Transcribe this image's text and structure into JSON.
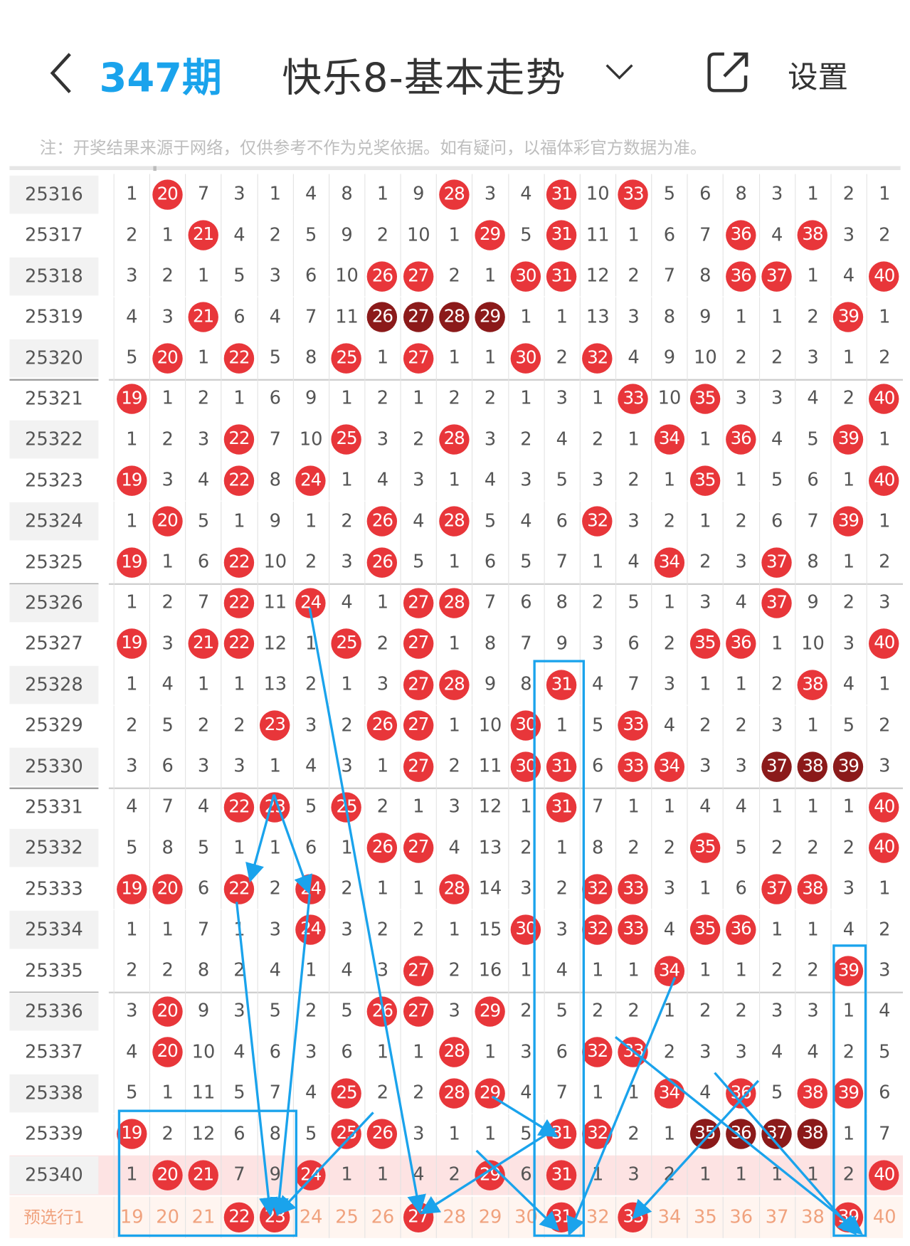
{
  "header": {
    "title": "快乐8-基本走势",
    "settings_label": "设置",
    "icons": {
      "back": "chevron-left-icon",
      "dropdown": "chevron-down-icon",
      "share": "share-icon"
    }
  },
  "note": "注：开奖结果来源于网络，仅供参考不作为兑奖依据。如有疑问，以福体彩官方数据为准。",
  "colors": {
    "hit_ball": "#e8363a",
    "consecutive_ball": "#8b1a1a",
    "highlight_row": "#fde3e3",
    "preselect_text": "#f0a27e",
    "annotation": "#1aa3ec"
  },
  "columns": [
    19,
    20,
    21,
    22,
    23,
    24,
    25,
    26,
    27,
    28,
    29,
    30,
    31,
    32,
    33,
    34,
    35,
    36,
    37,
    38,
    39,
    40
  ],
  "rows": [
    {
      "issue": "25316",
      "values": [
        1,
        20,
        7,
        3,
        1,
        4,
        8,
        1,
        9,
        28,
        3,
        4,
        31,
        10,
        33,
        5,
        6,
        8,
        3,
        1,
        2,
        1
      ],
      "dark": []
    },
    {
      "issue": "25317",
      "values": [
        2,
        1,
        21,
        4,
        2,
        5,
        9,
        2,
        10,
        1,
        29,
        5,
        31,
        11,
        1,
        6,
        7,
        36,
        4,
        38,
        3,
        2
      ],
      "dark": []
    },
    {
      "issue": "25318",
      "values": [
        3,
        2,
        1,
        5,
        3,
        6,
        10,
        26,
        27,
        2,
        1,
        30,
        31,
        12,
        2,
        7,
        8,
        36,
        37,
        1,
        4,
        40
      ],
      "dark": []
    },
    {
      "issue": "25319",
      "values": [
        4,
        3,
        21,
        6,
        4,
        7,
        11,
        26,
        27,
        28,
        29,
        1,
        1,
        13,
        3,
        8,
        9,
        1,
        1,
        2,
        39,
        1
      ],
      "dark": [
        26,
        27,
        28,
        29
      ]
    },
    {
      "issue": "25320",
      "values": [
        5,
        20,
        1,
        22,
        5,
        8,
        25,
        1,
        27,
        1,
        1,
        30,
        2,
        32,
        4,
        9,
        10,
        2,
        2,
        3,
        1,
        2
      ],
      "dark": []
    },
    {
      "issue": "25321",
      "values": [
        19,
        1,
        2,
        1,
        6,
        9,
        1,
        2,
        1,
        2,
        2,
        1,
        3,
        1,
        33,
        10,
        35,
        3,
        3,
        4,
        2,
        40
      ],
      "dark": []
    },
    {
      "issue": "25322",
      "values": [
        1,
        2,
        3,
        22,
        7,
        10,
        25,
        3,
        2,
        28,
        3,
        2,
        4,
        2,
        1,
        34,
        1,
        36,
        4,
        5,
        39,
        1
      ],
      "dark": []
    },
    {
      "issue": "25323",
      "values": [
        19,
        3,
        4,
        22,
        8,
        24,
        1,
        4,
        3,
        1,
        4,
        3,
        5,
        3,
        2,
        1,
        35,
        1,
        5,
        6,
        1,
        40
      ],
      "dark": []
    },
    {
      "issue": "25324",
      "values": [
        1,
        20,
        5,
        1,
        9,
        1,
        2,
        26,
        4,
        28,
        5,
        4,
        6,
        32,
        3,
        2,
        1,
        2,
        6,
        7,
        39,
        1
      ],
      "dark": []
    },
    {
      "issue": "25325",
      "values": [
        19,
        1,
        6,
        22,
        10,
        2,
        3,
        26,
        5,
        1,
        6,
        5,
        7,
        1,
        4,
        34,
        2,
        3,
        37,
        8,
        1,
        2
      ],
      "dark": []
    },
    {
      "issue": "25326",
      "values": [
        1,
        2,
        7,
        22,
        11,
        24,
        4,
        1,
        27,
        28,
        7,
        6,
        8,
        2,
        5,
        1,
        3,
        4,
        37,
        9,
        2,
        3
      ],
      "dark": []
    },
    {
      "issue": "25327",
      "values": [
        19,
        3,
        21,
        22,
        12,
        1,
        25,
        2,
        27,
        1,
        8,
        7,
        9,
        3,
        6,
        2,
        35,
        36,
        1,
        10,
        3,
        40
      ],
      "dark": []
    },
    {
      "issue": "25328",
      "values": [
        1,
        4,
        1,
        1,
        13,
        2,
        1,
        3,
        27,
        28,
        9,
        8,
        31,
        4,
        7,
        3,
        1,
        1,
        2,
        38,
        4,
        1
      ],
      "dark": []
    },
    {
      "issue": "25329",
      "values": [
        2,
        5,
        2,
        2,
        23,
        3,
        2,
        26,
        27,
        1,
        10,
        30,
        1,
        5,
        33,
        4,
        2,
        2,
        3,
        1,
        5,
        2
      ],
      "dark": []
    },
    {
      "issue": "25330",
      "values": [
        3,
        6,
        3,
        3,
        1,
        4,
        3,
        1,
        27,
        2,
        11,
        30,
        31,
        6,
        33,
        34,
        3,
        3,
        37,
        38,
        39,
        3
      ],
      "dark": [
        37,
        38,
        39
      ]
    },
    {
      "issue": "25331",
      "values": [
        4,
        7,
        4,
        22,
        23,
        5,
        25,
        2,
        1,
        3,
        12,
        1,
        31,
        7,
        1,
        1,
        4,
        4,
        1,
        1,
        1,
        40
      ],
      "dark": []
    },
    {
      "issue": "25332",
      "values": [
        5,
        8,
        5,
        1,
        1,
        6,
        1,
        26,
        27,
        4,
        13,
        2,
        1,
        8,
        2,
        2,
        35,
        5,
        2,
        2,
        2,
        40
      ],
      "dark": []
    },
    {
      "issue": "25333",
      "values": [
        19,
        20,
        6,
        22,
        2,
        24,
        2,
        1,
        1,
        28,
        14,
        3,
        2,
        32,
        33,
        3,
        1,
        6,
        37,
        38,
        3,
        1
      ],
      "dark": []
    },
    {
      "issue": "25334",
      "values": [
        1,
        1,
        7,
        1,
        3,
        24,
        3,
        2,
        2,
        1,
        15,
        30,
        3,
        32,
        33,
        4,
        35,
        36,
        1,
        1,
        4,
        2
      ],
      "dark": []
    },
    {
      "issue": "25335",
      "values": [
        2,
        2,
        8,
        2,
        4,
        1,
        4,
        3,
        27,
        2,
        16,
        1,
        4,
        1,
        1,
        34,
        1,
        1,
        2,
        2,
        39,
        3
      ],
      "dark": []
    },
    {
      "issue": "25336",
      "values": [
        3,
        20,
        9,
        3,
        5,
        2,
        5,
        26,
        27,
        3,
        29,
        2,
        5,
        2,
        2,
        1,
        2,
        2,
        3,
        3,
        1,
        4
      ],
      "dark": []
    },
    {
      "issue": "25337",
      "values": [
        4,
        20,
        10,
        4,
        6,
        3,
        6,
        1,
        1,
        28,
        1,
        3,
        6,
        32,
        33,
        2,
        3,
        3,
        4,
        4,
        2,
        5
      ],
      "dark": []
    },
    {
      "issue": "25338",
      "values": [
        5,
        1,
        11,
        5,
        7,
        4,
        25,
        2,
        2,
        28,
        29,
        4,
        7,
        1,
        1,
        34,
        4,
        36,
        5,
        38,
        39,
        6
      ],
      "dark": []
    },
    {
      "issue": "25339",
      "values": [
        19,
        2,
        12,
        6,
        8,
        5,
        25,
        26,
        3,
        1,
        1,
        5,
        31,
        32,
        2,
        1,
        35,
        36,
        37,
        38,
        1,
        7
      ],
      "dark": [
        35,
        36,
        37,
        38
      ]
    },
    {
      "issue": "25340",
      "values": [
        1,
        20,
        21,
        7,
        9,
        24,
        1,
        1,
        4,
        2,
        29,
        6,
        31,
        1,
        3,
        2,
        1,
        1,
        1,
        1,
        2,
        40
      ],
      "dark": [],
      "highlight": true
    }
  ],
  "preselect": {
    "label": "预选行1",
    "selected": [
      22,
      23,
      27,
      31,
      33,
      39
    ]
  },
  "annotation": {
    "text": "347期"
  }
}
